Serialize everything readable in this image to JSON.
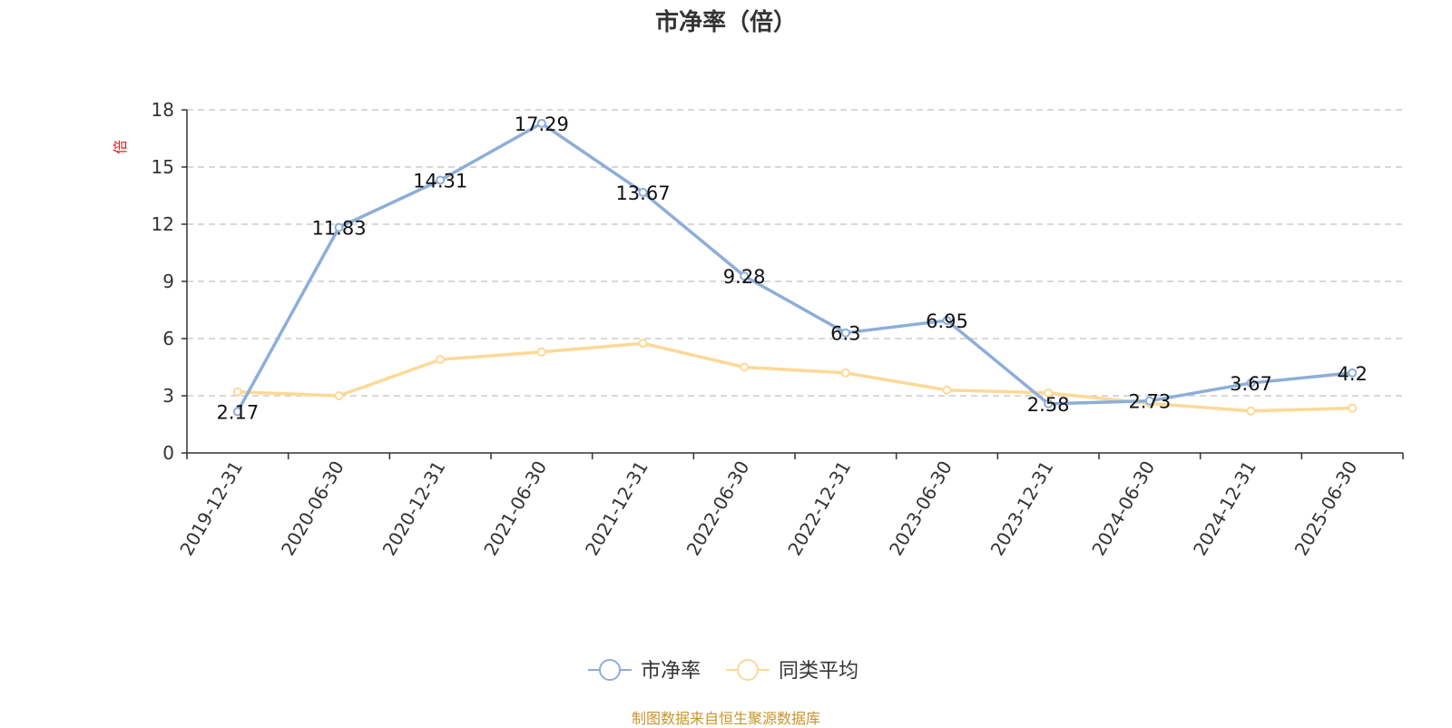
{
  "chart_data": {
    "type": "line",
    "title": "市净率（倍）",
    "ylabel": "倍",
    "xlabel": "",
    "categories": [
      "2019-12-31",
      "2020-06-30",
      "2020-12-31",
      "2021-06-30",
      "2021-12-31",
      "2022-06-30",
      "2022-12-31",
      "2023-06-30",
      "2023-12-31",
      "2024-06-30",
      "2024-12-31",
      "2025-06-30"
    ],
    "ylim": [
      0,
      18
    ],
    "yticks": [
      0,
      3,
      6,
      9,
      12,
      15,
      18
    ],
    "grid": true,
    "legend_position": "bottom-center",
    "series": [
      {
        "name": "市净率",
        "color": "#8eaed8",
        "values": [
          2.17,
          11.83,
          14.31,
          17.29,
          13.67,
          9.28,
          6.3,
          6.95,
          2.58,
          2.73,
          3.67,
          4.2
        ],
        "labels": [
          "2.17",
          "11.83",
          "14.31",
          "17.29",
          "13.67",
          "9.28",
          "6.3",
          "6.95",
          "2.58",
          "2.73",
          "3.67",
          "4.2"
        ]
      },
      {
        "name": "同类平均",
        "color": "#fdd996",
        "values": [
          3.2,
          3.0,
          4.9,
          5.3,
          5.75,
          4.5,
          4.2,
          3.3,
          3.15,
          2.6,
          2.2,
          2.35
        ]
      }
    ]
  },
  "footer": {
    "source": "制图数据来自恒生聚源数据库"
  },
  "colors": {
    "axis": "#333333",
    "grid": "#cccccc",
    "ylabel": "#e02020"
  }
}
